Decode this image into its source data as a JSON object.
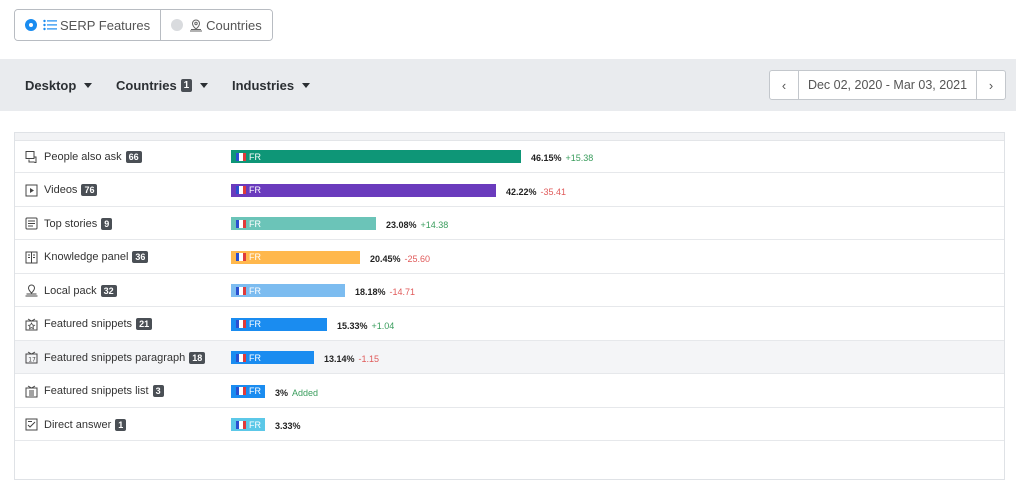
{
  "toggle": {
    "serp_label": "SERP Features",
    "countries_label": "Countries"
  },
  "filters": {
    "device": "Desktop",
    "countries": "Countries",
    "countries_count": "1",
    "industries": "Industries"
  },
  "date_range": "Dec 02, 2020 - Mar 03, 2021",
  "colors": {
    "accent": "#1a8cf0",
    "positive": "#3a9d5d",
    "negative": "#e05a5a"
  },
  "rows": [
    {
      "label": "People also ask",
      "count": "66",
      "icon": "people-also-ask-icon",
      "flag": "FR",
      "value_pct": 46.15,
      "value": "46.15%",
      "delta": "+15.38",
      "delta_type": "pos",
      "color": "#0e9677"
    },
    {
      "label": "Videos",
      "count": "76",
      "icon": "videos-icon",
      "flag": "FR",
      "value_pct": 42.22,
      "value": "42.22%",
      "delta": "-35.41",
      "delta_type": "neg",
      "color": "#6a3bbd"
    },
    {
      "label": "Top stories",
      "count": "9",
      "icon": "top-stories-icon",
      "flag": "FR",
      "value_pct": 23.08,
      "value": "23.08%",
      "delta": "+14.38",
      "delta_type": "pos",
      "color": "#6bc4b8"
    },
    {
      "label": "Knowledge panel",
      "count": "36",
      "icon": "knowledge-panel-icon",
      "flag": "FR",
      "value_pct": 20.45,
      "value": "20.45%",
      "delta": "-25.60",
      "delta_type": "neg",
      "color": "#ffb84d"
    },
    {
      "label": "Local pack",
      "count": "32",
      "icon": "local-pack-icon",
      "flag": "FR",
      "value_pct": 18.18,
      "value": "18.18%",
      "delta": "-14.71",
      "delta_type": "neg",
      "color": "#7cbcf0"
    },
    {
      "label": "Featured snippets",
      "count": "21",
      "icon": "featured-snippets-icon",
      "flag": "FR",
      "value_pct": 15.33,
      "value": "15.33%",
      "delta": "+1.04",
      "delta_type": "pos",
      "color": "#1a8cf0"
    },
    {
      "label": "Featured snippets paragraph",
      "count": "18",
      "icon": "featured-snippets-paragraph-icon",
      "flag": "FR",
      "value_pct": 13.14,
      "value": "13.14%",
      "delta": "-1.15",
      "delta_type": "neg",
      "color": "#1a8cf0",
      "highlight": true
    },
    {
      "label": "Featured snippets list",
      "count": "3",
      "icon": "featured-snippets-list-icon",
      "flag": "FR",
      "value_pct": 3,
      "value": "3%",
      "delta": "Added",
      "delta_type": "add",
      "color": "#1a8cf0"
    },
    {
      "label": "Direct answer",
      "count": "1",
      "icon": "direct-answer-icon",
      "flag": "FR",
      "value_pct": 3.33,
      "value": "3.33%",
      "delta": "",
      "delta_type": "",
      "color": "#5cc8e8"
    }
  ]
}
